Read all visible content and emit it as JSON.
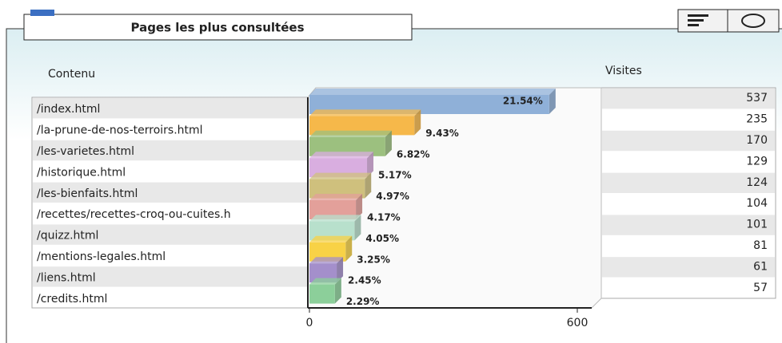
{
  "chart_data": {
    "type": "bar",
    "orientation": "horizontal",
    "title": "Pages les plus consultées",
    "category_header": "Contenu",
    "value_header": "Visites",
    "categories": [
      "/index.html",
      "/la-prune-de-nos-terroirs.html",
      "/les-varietes.html",
      "/historique.html",
      "/les-bienfaits.html",
      "/recettes/recettes-croq-ou-cuites.h",
      "/quizz.html",
      "/mentions-legales.html",
      "/liens.html",
      "/credits.html"
    ],
    "values": [
      537,
      235,
      170,
      129,
      124,
      104,
      101,
      81,
      61,
      57
    ],
    "percent": {
      "values": [
        21.54,
        9.43,
        6.82,
        5.17,
        4.97,
        4.17,
        4.05,
        3.25,
        2.45,
        2.29
      ],
      "value_labels": [
        "21.54%",
        "9.43%",
        "6.82%",
        "5.17%",
        "4.97%",
        "4.17%",
        "4.05%",
        "3.25%",
        "2.45%",
        "2.29%"
      ]
    },
    "colors": [
      "#8fb0d8",
      "#f6b84a",
      "#9cc07f",
      "#d9aee0",
      "#cfc07d",
      "#e3a09a",
      "#b8e0cc",
      "#f8d246",
      "#a48fcb",
      "#8ccf9a"
    ],
    "xlim": [
      0,
      600
    ],
    "xticks": [
      0,
      600
    ]
  }
}
